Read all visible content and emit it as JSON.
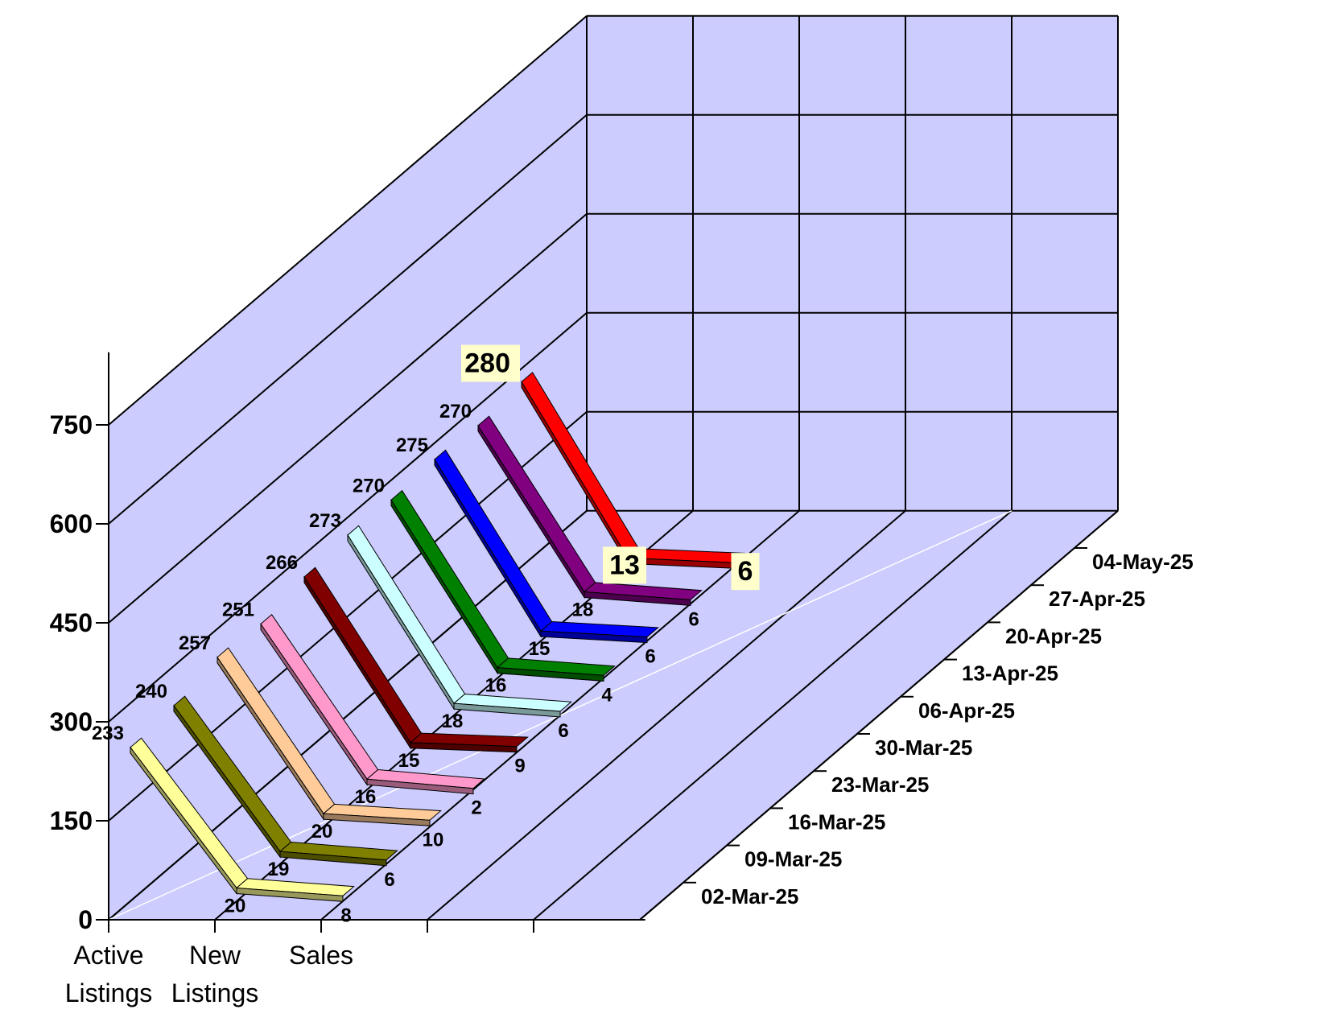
{
  "chart_data": {
    "type": "line",
    "title": "",
    "xlabel": "",
    "ylabel": "",
    "ylim": [
      0,
      750
    ],
    "y_ticks": [
      "0",
      "150",
      "300",
      "450",
      "600",
      "750"
    ],
    "categories": [
      {
        "line1": "Active",
        "line2": "Listings"
      },
      {
        "line1": "New",
        "line2": "Listings"
      },
      {
        "line1": "Sales",
        "line2": ""
      }
    ],
    "depth_labels": [
      "02-Mar-25",
      "09-Mar-25",
      "16-Mar-25",
      "23-Mar-25",
      "30-Mar-25",
      "06-Apr-25",
      "13-Apr-25",
      "20-Apr-25",
      "27-Apr-25",
      "04-May-25"
    ],
    "series": [
      {
        "date": "02-Mar-25",
        "color": "#ffff99",
        "values": [
          233,
          20,
          8
        ]
      },
      {
        "date": "09-Mar-25",
        "color": "#808000",
        "values": [
          240,
          19,
          6
        ]
      },
      {
        "date": "16-Mar-25",
        "color": "#ffcc99",
        "values": [
          257,
          20,
          10
        ]
      },
      {
        "date": "23-Mar-25",
        "color": "#ff99cc",
        "values": [
          251,
          16,
          2
        ]
      },
      {
        "date": "30-Mar-25",
        "color": "#800000",
        "values": [
          266,
          15,
          9
        ]
      },
      {
        "date": "06-Apr-25",
        "color": "#ccffff",
        "values": [
          273,
          18,
          6
        ]
      },
      {
        "date": "13-Apr-25",
        "color": "#008000",
        "values": [
          270,
          16,
          4
        ]
      },
      {
        "date": "20-Apr-25",
        "color": "#0000ff",
        "values": [
          275,
          15,
          6
        ]
      },
      {
        "date": "27-Apr-25",
        "color": "#800080",
        "values": [
          270,
          18,
          6
        ]
      },
      {
        "date": "04-May-25",
        "color": "#ff0000",
        "values": [
          280,
          13,
          6
        ]
      }
    ],
    "grid": true,
    "colors": {
      "wall": "#ccccff",
      "grid": "#000000",
      "highlight_label_bg": "#ffffcc"
    }
  }
}
